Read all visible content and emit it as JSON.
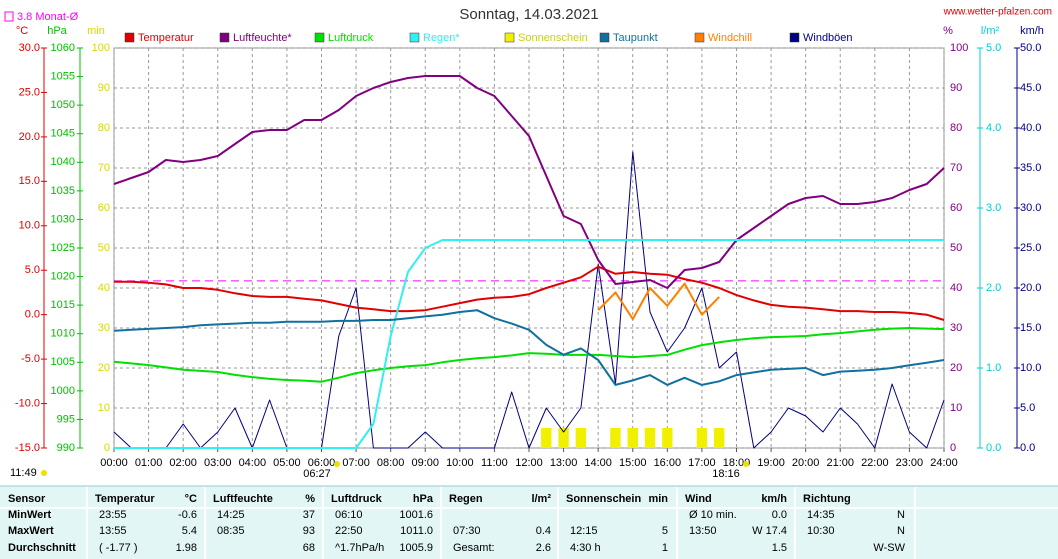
{
  "chart_data": {
    "type": "line",
    "title": "Sonntag, 14.03.2021",
    "source": "www.wetter-pfalzen.com",
    "grid": true,
    "xlim": [
      0,
      24
    ],
    "xticks": [
      {
        "value": 0,
        "label": "00:00"
      },
      {
        "value": 1,
        "label": "01:00"
      },
      {
        "value": 2,
        "label": "02:00"
      },
      {
        "value": 3,
        "label": "03:00"
      },
      {
        "value": 4,
        "label": "04:00"
      },
      {
        "value": 5,
        "label": "05:00"
      },
      {
        "value": 6,
        "label": "06:00"
      },
      {
        "value": 7,
        "label": "07:00"
      },
      {
        "value": 8,
        "label": "08:00"
      },
      {
        "value": 9,
        "label": "09:00"
      },
      {
        "value": 10,
        "label": "10:00"
      },
      {
        "value": 11,
        "label": "11:00"
      },
      {
        "value": 12,
        "label": "12:00"
      },
      {
        "value": 13,
        "label": "13:00"
      },
      {
        "value": 14,
        "label": "14:00"
      },
      {
        "value": 15,
        "label": "15:00"
      },
      {
        "value": 16,
        "label": "16:00"
      },
      {
        "value": 17,
        "label": "17:00"
      },
      {
        "value": 18,
        "label": "18:00"
      },
      {
        "value": 19,
        "label": "19:00"
      },
      {
        "value": 20,
        "label": "20:00"
      },
      {
        "value": 21,
        "label": "21:00"
      },
      {
        "value": 22,
        "label": "22:00"
      },
      {
        "value": 23,
        "label": "23:00"
      },
      {
        "value": 24,
        "label": "24:00"
      }
    ],
    "axes": [
      {
        "label": "°C",
        "side": "left",
        "color": "#e00000",
        "lim": [
          -15,
          30
        ],
        "ticks": [
          {
            "value": -15,
            "label": "-15.0"
          },
          {
            "value": -10,
            "label": "-10.0"
          },
          {
            "value": -5,
            "label": "-5.0"
          },
          {
            "value": 0,
            "label": "0.0"
          },
          {
            "value": 5,
            "label": "5.0"
          },
          {
            "value": 10,
            "label": "10.0"
          },
          {
            "value": 15,
            "label": "15.0"
          },
          {
            "value": 20,
            "label": "20.0"
          },
          {
            "value": 25,
            "label": "25.0"
          },
          {
            "value": 30,
            "label": "30.0"
          }
        ]
      },
      {
        "label": "hPa",
        "side": "left",
        "color": "#00c000",
        "lim": [
          990,
          1060
        ],
        "ticks": [
          990,
          995,
          1000,
          1005,
          1010,
          1015,
          1020,
          1025,
          1030,
          1035,
          1040,
          1045,
          1050,
          1055,
          1060
        ]
      },
      {
        "label": "min",
        "side": "left",
        "color": "#d8d800",
        "lim": [
          0,
          100
        ],
        "ticks": [
          0,
          10,
          20,
          30,
          40,
          50,
          60,
          70,
          80,
          90,
          100
        ]
      },
      {
        "label": "%",
        "side": "right",
        "color": "#800080",
        "lim": [
          0,
          100
        ],
        "ticks": [
          0,
          10,
          20,
          30,
          40,
          50,
          60,
          70,
          80,
          90,
          100
        ]
      },
      {
        "label": "l/m²",
        "side": "right",
        "color": "#00d0d0",
        "lim": [
          0,
          5
        ],
        "ticks": [
          {
            "value": 0,
            "label": "0.0"
          },
          {
            "value": 1,
            "label": "1.0"
          },
          {
            "value": 2,
            "label": "2.0"
          },
          {
            "value": 3,
            "label": "3.0"
          },
          {
            "value": 4,
            "label": "4.0"
          },
          {
            "value": 5,
            "label": "5.0"
          }
        ]
      },
      {
        "label": "km/h",
        "side": "right",
        "color": "#000080",
        "lim": [
          0,
          50
        ],
        "ticks": [
          {
            "value": 0,
            "label": "0.0"
          },
          {
            "value": 5,
            "label": "5.0"
          },
          {
            "value": 10,
            "label": "10.0"
          },
          {
            "value": 15,
            "label": "15.0"
          },
          {
            "value": 20,
            "label": "20.0"
          },
          {
            "value": 25,
            "label": "25.0"
          },
          {
            "value": 30,
            "label": "30.0"
          },
          {
            "value": 35,
            "label": "35.0"
          },
          {
            "value": 40,
            "label": "40.0"
          },
          {
            "value": 45,
            "label": "45.0"
          },
          {
            "value": 50,
            "label": "50.0"
          }
        ]
      }
    ],
    "reference": {
      "value": 3.8,
      "label": "3.8 Monat-Ø",
      "color": "#ff00ff",
      "axis": 0
    },
    "x": [
      0,
      0.5,
      1,
      1.5,
      2,
      2.5,
      3,
      3.5,
      4,
      4.5,
      5,
      5.5,
      6,
      6.5,
      7,
      7.5,
      8,
      8.5,
      9,
      9.5,
      10,
      10.5,
      11,
      11.5,
      12,
      12.5,
      13,
      13.5,
      14,
      14.5,
      15,
      15.5,
      16,
      16.5,
      17,
      17.5,
      18,
      18.5,
      19,
      19.5,
      20,
      20.5,
      21,
      21.5,
      22,
      22.5,
      23,
      23.5,
      24
    ],
    "series": [
      {
        "name": "Temperatur",
        "color": "#e00000",
        "axis": 0,
        "values": [
          3.7,
          3.7,
          3.6,
          3.4,
          3.0,
          3.0,
          2.8,
          2.4,
          2.1,
          2.0,
          2.0,
          1.8,
          1.6,
          1.2,
          0.8,
          0.6,
          0.4,
          0.4,
          0.5,
          0.9,
          1.3,
          1.7,
          1.9,
          2.0,
          2.3,
          3.0,
          3.6,
          4.2,
          5.4,
          4.6,
          4.8,
          4.6,
          4.5,
          4.0,
          3.6,
          3.0,
          2.2,
          1.6,
          1.1,
          0.9,
          0.8,
          0.6,
          0.4,
          0.4,
          0.3,
          0.3,
          0.2,
          0.0,
          -0.6
        ]
      },
      {
        "name": "Luftfeuchte*",
        "color": "#800080",
        "axis": 3,
        "values": [
          66,
          67.5,
          69,
          72,
          71.5,
          72,
          73,
          76,
          79,
          79.5,
          79.5,
          82,
          82,
          84.5,
          88,
          90,
          91.5,
          92.5,
          93,
          93,
          93,
          90,
          88,
          83,
          78,
          68,
          58,
          56,
          47,
          41,
          41.5,
          42,
          40,
          44.5,
          45,
          46.5,
          52,
          55,
          58,
          61,
          62.5,
          63,
          61,
          61,
          61.5,
          62.5,
          64.5,
          66,
          70
        ]
      },
      {
        "name": "Luftdruck",
        "color": "#00e000",
        "axis": 1,
        "values": [
          1005.1,
          1004.8,
          1004.5,
          1004.1,
          1003.7,
          1003.5,
          1003.3,
          1002.8,
          1002.4,
          1002.1,
          1001.9,
          1001.8,
          1001.6,
          1002.3,
          1003.1,
          1003.6,
          1004.0,
          1004.3,
          1004.5,
          1005.0,
          1005.4,
          1005.7,
          1005.9,
          1006.2,
          1006.6,
          1006.5,
          1006.3,
          1006.3,
          1006.3,
          1006.1,
          1005.9,
          1006.1,
          1006.3,
          1007.2,
          1008.0,
          1008.5,
          1008.9,
          1009.2,
          1009.4,
          1009.5,
          1009.6,
          1009.9,
          1010.1,
          1010.4,
          1010.7,
          1010.9,
          1011.0,
          1010.9,
          1010.8
        ]
      },
      {
        "name": "Regen*",
        "color": "#30f0f0",
        "axis": 4,
        "values": [
          0,
          0,
          0,
          0,
          0,
          0,
          0,
          0,
          0,
          0,
          0,
          0,
          0,
          0,
          0,
          0.3,
          1.4,
          2.2,
          2.5,
          2.6,
          2.6,
          2.6,
          2.6,
          2.6,
          2.6,
          2.6,
          2.6,
          2.6,
          2.6,
          2.6,
          2.6,
          2.6,
          2.6,
          2.6,
          2.6,
          2.6,
          2.6,
          2.6,
          2.6,
          2.6,
          2.6,
          2.6,
          2.6,
          2.6,
          2.6,
          2.6,
          2.6,
          2.6,
          2.6
        ]
      },
      {
        "name": "Sonnenschein",
        "color": "#f0f000",
        "axis": 2,
        "kind": "bar",
        "values": [
          0,
          0,
          0,
          0,
          0,
          0,
          0,
          0,
          0,
          0,
          0,
          0,
          0,
          0,
          0,
          0,
          0,
          0,
          0,
          0,
          0,
          0,
          0,
          0,
          0,
          5,
          5,
          5,
          0,
          5,
          5,
          5,
          5,
          0,
          5,
          5,
          0,
          0,
          0,
          0,
          0,
          0,
          0,
          0,
          0,
          0,
          0,
          0,
          0
        ]
      },
      {
        "name": "Taupunkt",
        "color": "#1070a0",
        "axis": 0,
        "values": [
          -1.8,
          -1.7,
          -1.6,
          -1.5,
          -1.4,
          -1.2,
          -1.1,
          -1.0,
          -0.9,
          -0.9,
          -0.8,
          -0.8,
          -0.8,
          -0.7,
          -0.7,
          -0.6,
          -0.6,
          -0.4,
          -0.2,
          0.0,
          0.3,
          0.5,
          -0.4,
          -1.0,
          -1.7,
          -3.4,
          -4.5,
          -3.8,
          -5.1,
          -7.9,
          -7.4,
          -6.8,
          -7.9,
          -7.1,
          -7.9,
          -7.5,
          -6.8,
          -6.5,
          -6.2,
          -6.1,
          -6.0,
          -6.8,
          -6.4,
          -6.3,
          -6.2,
          -6.0,
          -5.7,
          -5.4,
          -5.1
        ]
      },
      {
        "name": "Windchill",
        "color": "#ff8000",
        "axis": 0,
        "values": [
          null,
          null,
          null,
          null,
          null,
          null,
          null,
          null,
          null,
          null,
          null,
          null,
          null,
          null,
          null,
          null,
          null,
          null,
          null,
          null,
          null,
          null,
          null,
          null,
          null,
          null,
          null,
          null,
          0.5,
          2.5,
          -0.5,
          3.0,
          1.0,
          3.5,
          0.0,
          2.0,
          null,
          null,
          null,
          null,
          null,
          null,
          null,
          null,
          null,
          null,
          null,
          null,
          null
        ]
      },
      {
        "name": "Windböen",
        "color": "#000080",
        "axis": 5,
        "values": [
          2,
          0,
          0,
          0,
          3,
          0,
          2,
          5,
          0,
          6,
          0,
          0,
          0,
          14,
          20,
          0,
          0,
          0,
          2,
          0,
          0,
          0,
          0,
          7,
          0,
          5,
          2,
          5,
          23,
          8,
          37,
          17,
          12,
          15,
          20,
          10,
          12,
          0,
          2,
          5,
          4,
          2,
          5,
          3,
          0,
          8,
          2,
          0,
          6
        ]
      }
    ],
    "sun": {
      "daylength": "11:49",
      "sunrise": "06:27",
      "sunset": "18:16"
    }
  },
  "table": {
    "sensor": "Sensor",
    "columns": [
      {
        "name": "Temperatur",
        "unit": "°C"
      },
      {
        "name": "Luftfeuchte",
        "unit": "%"
      },
      {
        "name": "Luftdruck",
        "unit": "hPa"
      },
      {
        "name": "Regen",
        "unit": "l/m²"
      },
      {
        "name": "Sonnenschein",
        "unit": "min"
      },
      {
        "name": "Wind",
        "unit": "km/h"
      },
      {
        "name": "Richtung",
        "unit": null
      }
    ],
    "rows": [
      {
        "label": "MinWert",
        "cells": [
          [
            "23:55",
            "-0.6"
          ],
          [
            "14:25",
            "37"
          ],
          [
            "06:10",
            "1001.6"
          ],
          [
            null,
            null
          ],
          [
            null,
            null
          ],
          [
            "Ø 10 min.",
            "0.0"
          ],
          [
            "14:35",
            "N"
          ]
        ]
      },
      {
        "label": "MaxWert",
        "cells": [
          [
            "13:55",
            "5.4"
          ],
          [
            "08:35",
            "93"
          ],
          [
            "22:50",
            "1011.0"
          ],
          [
            "07:30",
            "0.4"
          ],
          [
            "12:15",
            "5"
          ],
          [
            "13:50",
            "W 17.4"
          ],
          [
            "10:30",
            "N"
          ]
        ]
      },
      {
        "label": "Durchschnitt",
        "cells": [
          [
            "( -1.77 )",
            "1.98"
          ],
          [
            null,
            "68"
          ],
          [
            "^1.7hPa/h",
            "1005.9"
          ],
          [
            "Gesamt:",
            "2.6"
          ],
          [
            "4:30 h",
            "1"
          ],
          [
            null,
            "1.5"
          ],
          [
            null,
            "W-SW"
          ]
        ]
      }
    ]
  }
}
